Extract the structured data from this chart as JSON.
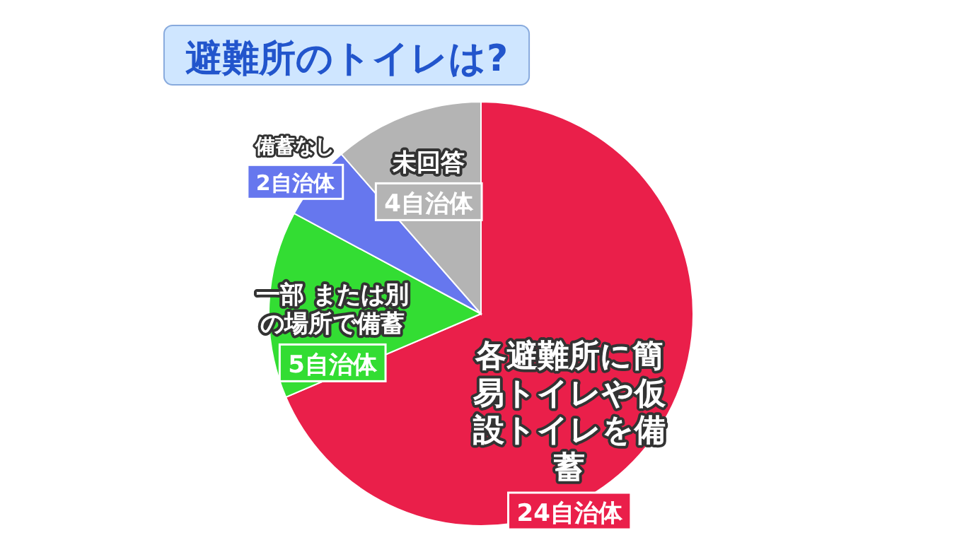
{
  "chart_data": {
    "type": "pie",
    "title": "避難所のトイレは?",
    "categories": [
      "各避難所に簡易トイレや仮設トイレを備蓄",
      "一部 または別の場所で備蓄",
      "備蓄なし",
      "未回答"
    ],
    "values": [
      24,
      5,
      2,
      4
    ],
    "value_labels": [
      "24自治体",
      "5自治体",
      "2自治体",
      "4自治体"
    ],
    "colors": [
      "#ea1f4a",
      "#33dd33",
      "#6677ee",
      "#b4b4b4"
    ]
  }
}
